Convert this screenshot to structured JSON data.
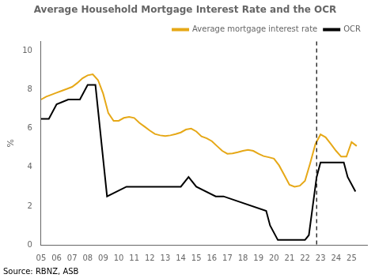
{
  "chart_data": {
    "type": "line",
    "title": "Average Household Mortgage Interest Rate and the OCR",
    "ylabel": "%",
    "annotations": [
      "Source: RBNZ, ASB"
    ],
    "xlim": [
      2005,
      2026
    ],
    "ylim": [
      0,
      10.5
    ],
    "yticks": [
      0,
      2,
      4,
      6,
      8,
      10
    ],
    "xticks": [
      {
        "value": 2005,
        "label": "05"
      },
      {
        "value": 2006,
        "label": "06"
      },
      {
        "value": 2007,
        "label": "07"
      },
      {
        "value": 2008,
        "label": "08"
      },
      {
        "value": 2009,
        "label": "09"
      },
      {
        "value": 2010,
        "label": "10"
      },
      {
        "value": 2011,
        "label": "11"
      },
      {
        "value": 2012,
        "label": "12"
      },
      {
        "value": 2013,
        "label": "13"
      },
      {
        "value": 2014,
        "label": "14"
      },
      {
        "value": 2015,
        "label": "15"
      },
      {
        "value": 2016,
        "label": "16"
      },
      {
        "value": 2017,
        "label": "17"
      },
      {
        "value": 2018,
        "label": "18"
      },
      {
        "value": 2019,
        "label": "19"
      },
      {
        "value": 2020,
        "label": "20"
      },
      {
        "value": 2021,
        "label": "21"
      },
      {
        "value": 2022,
        "label": "22"
      },
      {
        "value": 2023,
        "label": "23"
      },
      {
        "value": 2024,
        "label": "24"
      },
      {
        "value": 2025,
        "label": "25"
      }
    ],
    "grid": false,
    "legend": "upper right",
    "vlines": [
      {
        "x": 2022.75,
        "color": "#000000",
        "line_style": "dashed"
      }
    ],
    "series": [
      {
        "name": "Average mortgage interest rate",
        "color": "#E6A817",
        "x": [
          2005.0,
          2005.33,
          2005.67,
          2006.0,
          2006.33,
          2006.67,
          2007.0,
          2007.33,
          2007.67,
          2008.0,
          2008.33,
          2008.67,
          2009.0,
          2009.33,
          2009.67,
          2010.0,
          2010.33,
          2010.67,
          2011.0,
          2011.33,
          2011.67,
          2012.0,
          2012.33,
          2012.67,
          2013.0,
          2013.33,
          2013.67,
          2014.0,
          2014.33,
          2014.67,
          2015.0,
          2015.33,
          2015.67,
          2016.0,
          2016.33,
          2016.67,
          2017.0,
          2017.33,
          2017.67,
          2018.0,
          2018.33,
          2018.67,
          2019.0,
          2019.33,
          2019.67,
          2020.0,
          2020.33,
          2020.67,
          2021.0,
          2021.33,
          2021.67,
          2022.0,
          2022.33,
          2022.67,
          2023.0,
          2023.33,
          2023.67,
          2024.0,
          2024.33,
          2024.67,
          2025.0,
          2025.33
        ],
        "values": [
          7.5,
          7.65,
          7.75,
          7.85,
          7.95,
          8.05,
          8.15,
          8.35,
          8.6,
          8.75,
          8.8,
          8.5,
          7.8,
          6.8,
          6.4,
          6.4,
          6.55,
          6.6,
          6.55,
          6.3,
          6.1,
          5.9,
          5.72,
          5.65,
          5.62,
          5.65,
          5.72,
          5.8,
          5.95,
          6.0,
          5.85,
          5.6,
          5.5,
          5.35,
          5.1,
          4.85,
          4.7,
          4.72,
          4.78,
          4.85,
          4.9,
          4.85,
          4.7,
          4.58,
          4.52,
          4.45,
          4.1,
          3.6,
          3.1,
          3.0,
          3.05,
          3.3,
          4.2,
          5.2,
          5.7,
          5.55,
          5.2,
          4.85,
          4.55,
          4.55,
          5.3,
          5.1
        ]
      },
      {
        "name": "OCR",
        "color": "#000000",
        "x": [
          2005.0,
          2005.5,
          2005.5,
          2006.0,
          2006.0,
          2006.75,
          2006.75,
          2007.5,
          2007.5,
          2008.0,
          2008.0,
          2008.5,
          2008.5,
          2009.25,
          2009.25,
          2010.5,
          2010.5,
          2011.0,
          2011.0,
          2011.5,
          2011.5,
          2014.0,
          2014.0,
          2014.5,
          2014.5,
          2015.0,
          2015.0,
          2016.25,
          2016.25,
          2016.75,
          2016.75,
          2019.5,
          2019.5,
          2019.75,
          2019.75,
          2020.25,
          2020.25,
          2020.5,
          2020.5,
          2022.0,
          2022.0,
          2022.25,
          2022.25,
          2022.5,
          2022.5,
          2022.75,
          2022.75,
          2023.0,
          2023.0,
          2023.5,
          2023.5,
          2024.0,
          2024.0,
          2024.25,
          2024.25,
          2024.5,
          2024.5,
          2024.75,
          2024.75,
          2025.25
        ],
        "values": [
          6.5,
          6.5,
          6.5,
          7.25,
          7.25,
          7.5,
          7.5,
          7.5,
          7.5,
          8.25,
          8.25,
          8.25,
          8.25,
          2.5,
          2.5,
          3.0,
          3.0,
          3.0,
          3.0,
          3.0,
          3.0,
          3.0,
          3.0,
          3.5,
          3.5,
          3.0,
          3.0,
          2.5,
          2.5,
          2.5,
          2.5,
          1.75,
          1.75,
          1.0,
          1.0,
          0.25,
          0.25,
          0.25,
          0.25,
          0.25,
          0.25,
          0.5,
          0.5,
          2.0,
          2.0,
          3.5,
          3.5,
          4.25,
          4.25,
          4.25,
          4.25,
          4.25,
          4.25,
          4.25,
          4.25,
          4.25,
          4.25,
          3.5,
          3.5,
          2.75
        ]
      }
    ]
  }
}
